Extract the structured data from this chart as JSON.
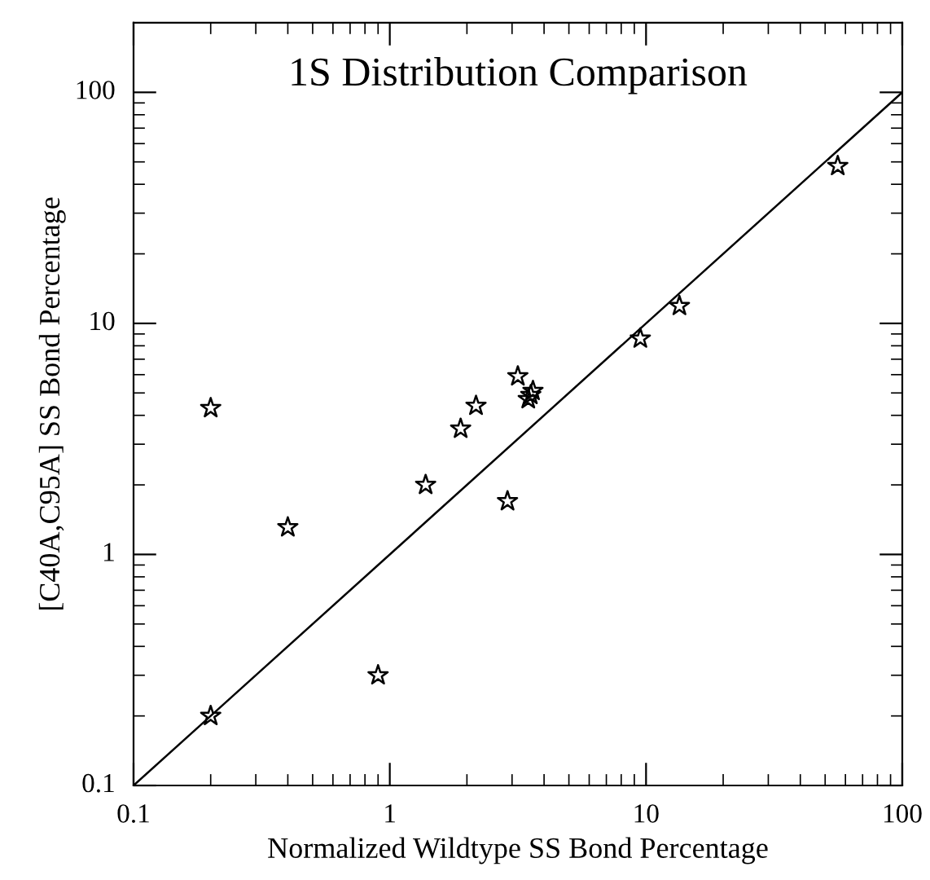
{
  "chart_data": {
    "type": "scatter",
    "title": "1S Distribution Comparison",
    "xlabel": "Normalized Wildtype SS Bond Percentage",
    "ylabel": "[C40A,C95A] SS Bond Percentage",
    "log": "xy",
    "xlim": [
      0.1,
      100
    ],
    "ylim": [
      0.1,
      200
    ],
    "xticks": [
      0.1,
      1,
      10,
      100
    ],
    "yticks": [
      0.1,
      1,
      10,
      100
    ],
    "grid": false,
    "legend": false,
    "marker": "star",
    "series": [
      {
        "color": "#000000",
        "x": [
          0.2,
          0.2,
          0.4,
          0.9,
          1.38,
          1.89,
          2.17,
          2.88,
          3.16,
          3.47,
          3.55,
          3.62,
          9.5,
          13.5,
          56
        ],
        "values": [
          4.3,
          0.2,
          1.31,
          0.3,
          2.0,
          3.5,
          4.4,
          1.7,
          5.9,
          4.7,
          4.9,
          5.1,
          8.6,
          11.9,
          48
        ]
      },
      {
        "type": "line",
        "color": "#000000",
        "x": [
          0.1,
          100
        ],
        "values": [
          0.1,
          100
        ],
        "marker": "none",
        "line_style": "solid"
      }
    ]
  }
}
